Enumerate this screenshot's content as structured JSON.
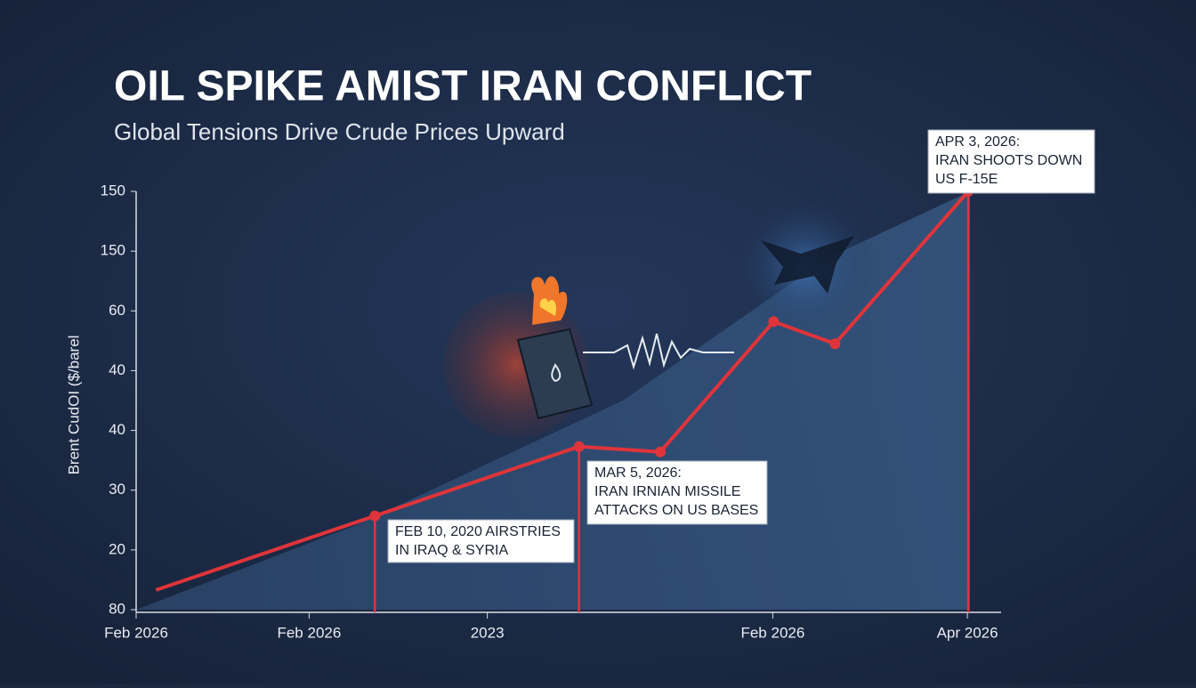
{
  "chart_data": {
    "type": "line",
    "title": "OIL SPIKE AMIST IRAN CONFLICT",
    "subtitle": "Global Tensions Drive Crude Prices Upward",
    "y_label": "Brent  CudOI ($/barel",
    "x": [
      2.3,
      27.6,
      51.2,
      60.6,
      73.7,
      80.8,
      96.2
    ],
    "values": [
      0.33,
      1.57,
      2.73,
      2.64,
      4.82,
      4.45,
      7.0
    ],
    "color": "#e0343a",
    "xlim": [
      0,
      100
    ],
    "xticks": [
      {
        "value": 0,
        "label": "Feb 2026"
      },
      {
        "value": 20,
        "label": "Feb 2026"
      },
      {
        "value": 40.6,
        "label": "2023"
      },
      {
        "value": 73.6,
        "label": "Feb 2026"
      },
      {
        "value": 96.1,
        "label": "Apr 2026"
      }
    ],
    "ylim": [
      0,
      7
    ],
    "yticks": [
      {
        "value": 7,
        "label": "150"
      },
      {
        "value": 6,
        "label": "150"
      },
      {
        "value": 5,
        "label": "60"
      },
      {
        "value": 4,
        "label": "40"
      },
      {
        "value": 3,
        "label": "40"
      },
      {
        "value": 2,
        "label": "30"
      },
      {
        "value": 1,
        "label": "20"
      },
      {
        "value": 0,
        "label": "80"
      }
    ],
    "annotations": [
      {
        "point": 1,
        "lines": [
          "FEB 10, 2020 AIRSTRIES",
          "IN IRAQ & SYRIA"
        ]
      },
      {
        "point": 2,
        "lines": [
          "MAR 5, 2026:",
          "IRAN IRNIAN MISSILE",
          "ATTACKS ON US BASES"
        ]
      },
      {
        "point": 6,
        "lines": [
          "APR 3, 2026:",
          "IRAN SHOOTS DOWN",
          "US F-15E"
        ]
      }
    ]
  }
}
